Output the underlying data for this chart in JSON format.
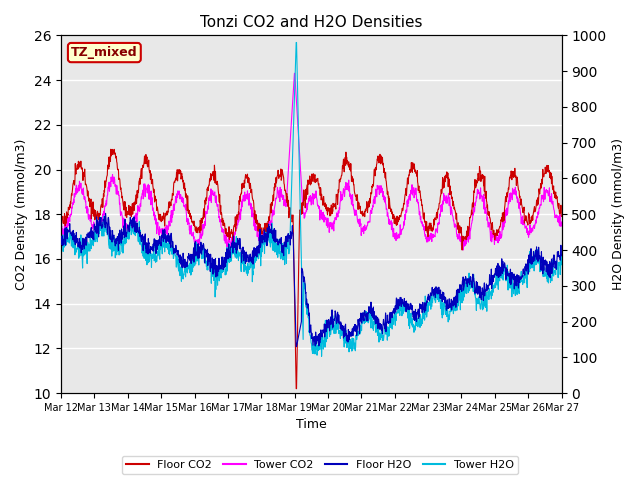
{
  "title": "Tonzi CO2 and H2O Densities",
  "xlabel": "Time",
  "ylabel_left": "CO2 Density (mmol/m3)",
  "ylabel_right": "H2O Density (mmol/m3)",
  "ylim_left": [
    10,
    26
  ],
  "ylim_right": [
    0,
    1000
  ],
  "n_points": 1440,
  "colors": {
    "floor_co2": "#cc0000",
    "tower_co2": "#ff00ff",
    "floor_h2o": "#0000bb",
    "tower_h2o": "#00bbdd"
  },
  "line_width": 0.8,
  "bg_color": "#e8e8e8",
  "tz_label": "TZ_mixed",
  "tz_box_facecolor": "#ffffcc",
  "tz_box_edgecolor": "#cc0000",
  "legend_labels": [
    "Floor CO2",
    "Tower CO2",
    "Floor H2O",
    "Tower H2O"
  ],
  "x_tick_days": [
    12,
    13,
    14,
    15,
    16,
    17,
    18,
    19,
    20,
    21,
    22,
    23,
    24,
    25,
    26,
    27
  ],
  "seed": 17
}
